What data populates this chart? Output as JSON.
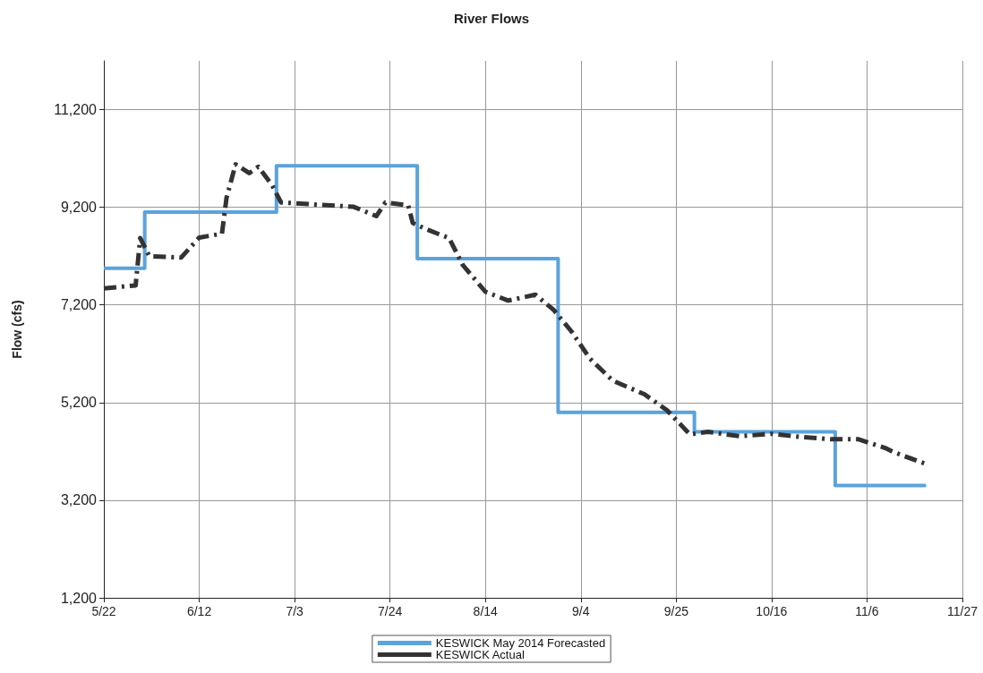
{
  "chart_data": {
    "type": "line",
    "title": "River Flows",
    "ylabel": "Flow (cfs)",
    "xlim": [
      "2014-05-22",
      "2014-11-27"
    ],
    "xticks": [
      {
        "value": "2014-05-22",
        "label": "5/22"
      },
      {
        "value": "2014-06-12",
        "label": "6/12"
      },
      {
        "value": "2014-07-03",
        "label": "7/3"
      },
      {
        "value": "2014-07-24",
        "label": "7/24"
      },
      {
        "value": "2014-08-14",
        "label": "8/14"
      },
      {
        "value": "2014-09-04",
        "label": "9/4"
      },
      {
        "value": "2014-09-25",
        "label": "9/25"
      },
      {
        "value": "2014-10-16",
        "label": "10/16"
      },
      {
        "value": "2014-11-06",
        "label": "11/6"
      },
      {
        "value": "2014-11-27",
        "label": "11/27"
      }
    ],
    "ylim": [
      1200,
      12200
    ],
    "yticks": [
      {
        "value": 1200,
        "label": "1,200"
      },
      {
        "value": 3200,
        "label": "3,200"
      },
      {
        "value": 5200,
        "label": "5,200"
      },
      {
        "value": 7200,
        "label": "7,200"
      },
      {
        "value": 9200,
        "label": "9,200"
      },
      {
        "value": 11200,
        "label": "11,200"
      }
    ],
    "grid": true,
    "legend": "bottom",
    "marker": "none",
    "series": [
      {
        "name": "KESWICK May 2014 Forecasted",
        "type": "step",
        "color": "#5ba3dc",
        "line_style": "solid",
        "x": [
          "2014-05-22",
          "2014-05-31",
          "2014-06-29",
          "2014-07-30",
          "2014-08-30",
          "2014-09-29",
          "2014-10-30",
          "2014-11-19"
        ],
        "values": [
          7950,
          9100,
          10050,
          8150,
          5000,
          4600,
          3500,
          3500
        ]
      },
      {
        "name": "KESWICK Actual",
        "type": "line",
        "color": "#333333",
        "line_style": "dashed",
        "x": [
          "2014-05-22",
          "2014-05-29",
          "2014-05-30",
          "2014-06-01",
          "2014-06-08",
          "2014-06-12",
          "2014-06-17",
          "2014-06-18",
          "2014-06-20",
          "2014-06-23",
          "2014-06-25",
          "2014-06-28",
          "2014-06-30",
          "2014-07-07",
          "2014-07-16",
          "2014-07-21",
          "2014-07-23",
          "2014-07-28",
          "2014-07-29",
          "2014-08-01",
          "2014-08-06",
          "2014-08-09",
          "2014-08-14",
          "2014-08-19",
          "2014-08-25",
          "2014-08-29",
          "2014-09-02",
          "2014-09-06",
          "2014-09-11",
          "2014-09-18",
          "2014-09-23",
          "2014-09-28",
          "2014-10-02",
          "2014-10-09",
          "2014-10-16",
          "2014-10-23",
          "2014-10-29",
          "2014-11-04",
          "2014-11-10",
          "2014-11-12",
          "2014-11-19"
        ],
        "values": [
          7540,
          7600,
          8570,
          8200,
          8170,
          8580,
          8660,
          9390,
          10080,
          9900,
          10030,
          9660,
          9300,
          9260,
          9210,
          9020,
          9300,
          9240,
          8880,
          8750,
          8570,
          8020,
          7470,
          7290,
          7410,
          7100,
          6650,
          6100,
          5650,
          5370,
          5040,
          4550,
          4600,
          4510,
          4560,
          4490,
          4450,
          4450,
          4270,
          4180,
          3940
        ]
      }
    ]
  }
}
